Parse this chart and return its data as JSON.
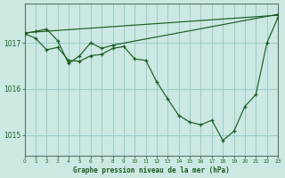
{
  "bg_color": "#cce8e2",
  "grid_color": "#99cccc",
  "line_color": "#1a5c20",
  "title": "Graphe pression niveau de la mer (hPa)",
  "xlim": [
    0,
    23
  ],
  "ylim": [
    1014.55,
    1017.85
  ],
  "yticks": [
    1015,
    1016,
    1017
  ],
  "xtick_labels": [
    "0",
    "1",
    "2",
    "3",
    "4",
    "5",
    "6",
    "7",
    "8",
    "9",
    "10",
    "11",
    "12",
    "13",
    "14",
    "15",
    "16",
    "17",
    "18",
    "19",
    "20",
    "21",
    "22",
    "23"
  ],
  "line1_x": [
    0,
    1,
    2,
    3,
    4,
    5,
    6,
    7,
    8,
    9,
    10,
    11,
    12,
    13,
    14,
    15,
    16,
    17,
    18,
    19,
    20,
    21,
    22,
    23
  ],
  "line1_y": [
    1017.2,
    1017.1,
    1016.85,
    1016.9,
    1016.62,
    1016.6,
    1016.72,
    1016.75,
    1016.88,
    1016.92,
    1016.65,
    1016.62,
    1016.15,
    1015.78,
    1015.42,
    1015.28,
    1015.22,
    1015.32,
    1014.88,
    1015.08,
    1015.62,
    1015.88,
    1017.0,
    1017.55
  ],
  "line2_x": [
    0,
    1,
    2,
    3,
    4,
    5,
    6,
    7,
    8,
    23
  ],
  "line2_y": [
    1017.2,
    1017.25,
    1017.3,
    1017.05,
    1016.55,
    1016.72,
    1017.0,
    1016.88,
    1016.95,
    1017.62
  ],
  "line3_x": [
    0,
    23
  ],
  "line3_y": [
    1017.22,
    1017.6
  ]
}
